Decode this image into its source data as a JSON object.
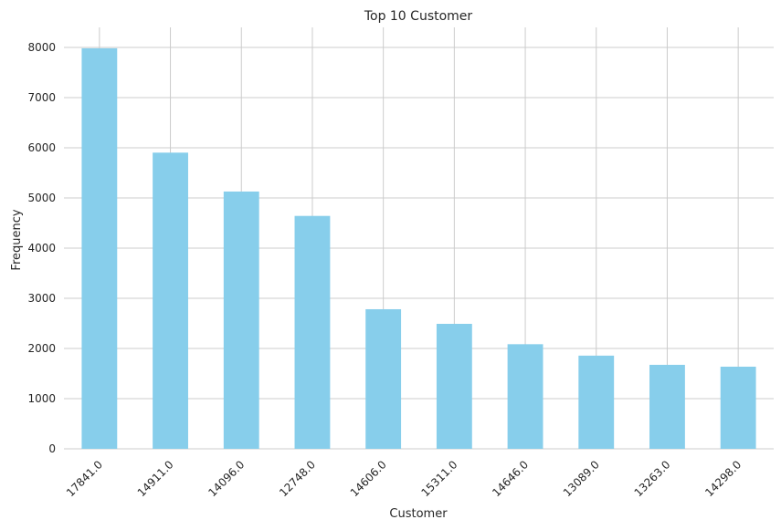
{
  "chart_data": {
    "type": "bar",
    "title": "Top 10 Customer",
    "xlabel": "Customer",
    "ylabel": "Frequency",
    "categories": [
      "17841.0",
      "14911.0",
      "14096.0",
      "12748.0",
      "14606.0",
      "15311.0",
      "14646.0",
      "13089.0",
      "13263.0",
      "14298.0"
    ],
    "values": [
      7983,
      5903,
      5128,
      4642,
      2782,
      2491,
      2085,
      1857,
      1674,
      1637
    ],
    "ylim": [
      0,
      8400
    ],
    "yticks": [
      "0",
      "1000",
      "2000",
      "3000",
      "4000",
      "5000",
      "6000",
      "7000",
      "8000"
    ],
    "grid": true,
    "bar_color": "#87ceeb"
  }
}
